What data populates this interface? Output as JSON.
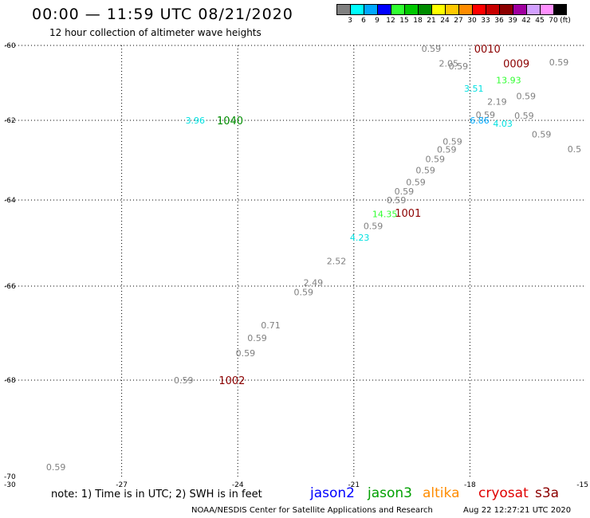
{
  "header": {
    "title": "00:00 — 11:59 UTC 08/21/2020",
    "subtitle": "12 hour collection of altimeter wave heights"
  },
  "color_scale": {
    "unit": "(ft)",
    "bins": [
      {
        "label": "3",
        "color": "#808080"
      },
      {
        "label": "6",
        "color": "#00ffff"
      },
      {
        "label": "9",
        "color": "#00a8ff"
      },
      {
        "label": "12",
        "color": "#0000ff"
      },
      {
        "label": "15",
        "color": "#30ff30"
      },
      {
        "label": "18",
        "color": "#00c800"
      },
      {
        "label": "21",
        "color": "#008c00"
      },
      {
        "label": "24",
        "color": "#ffff00"
      },
      {
        "label": "27",
        "color": "#ffc800"
      },
      {
        "label": "30",
        "color": "#ff8c00"
      },
      {
        "label": "33",
        "color": "#ff0000"
      },
      {
        "label": "36",
        "color": "#c80000"
      },
      {
        "label": "39",
        "color": "#8c0000"
      },
      {
        "label": "42",
        "color": "#a000a0"
      },
      {
        "label": "45",
        "color": "#d2a0ff"
      },
      {
        "label": "70",
        "color": "#ff90ff"
      },
      {
        "label": "",
        "color": "#000000"
      }
    ]
  },
  "map": {
    "lon_range": [
      -30,
      -15
    ],
    "lat_range": [
      -70,
      -60
    ],
    "y_ticks": [
      {
        "label": "-60",
        "lat": -60
      },
      {
        "label": "-62",
        "lat": -62
      },
      {
        "label": "-64",
        "lat": -64
      },
      {
        "label": "-66",
        "lat": -66
      },
      {
        "label": "-68",
        "lat": -68
      },
      {
        "label": "-70",
        "lat": -70
      }
    ],
    "x_ticks": [
      {
        "label": "-30",
        "lon": -30
      },
      {
        "label": "-27",
        "lon": -27
      },
      {
        "label": "-24",
        "lon": -24
      },
      {
        "label": "-21",
        "lon": -21
      },
      {
        "label": "-18",
        "lon": -18
      },
      {
        "label": "-15",
        "lon": -15
      }
    ],
    "obs_colors": {
      "gray": "#808080",
      "cyan": "#00e0e0",
      "blue": "#00a8ff",
      "green": "#30ff30"
    },
    "observations": [
      {
        "lon": -19.0,
        "lat": -60.08,
        "text": "0.59",
        "color": "gray"
      },
      {
        "lon": -18.55,
        "lat": -60.48,
        "text": "2.05",
        "color": "gray"
      },
      {
        "lon": -18.3,
        "lat": -60.55,
        "text": "0.59",
        "color": "gray"
      },
      {
        "lon": -15.7,
        "lat": -60.45,
        "text": "0.59",
        "color": "gray"
      },
      {
        "lon": -17.0,
        "lat": -60.93,
        "text": "13.93",
        "color": "green"
      },
      {
        "lon": -17.9,
        "lat": -61.15,
        "text": "3.51",
        "color": "cyan"
      },
      {
        "lon": -16.55,
        "lat": -61.35,
        "text": "0.59",
        "color": "gray"
      },
      {
        "lon": -17.3,
        "lat": -61.5,
        "text": "2.19",
        "color": "gray"
      },
      {
        "lon": -17.6,
        "lat": -61.85,
        "text": "0.59",
        "color": "gray"
      },
      {
        "lon": -16.6,
        "lat": -61.87,
        "text": "0.59",
        "color": "gray"
      },
      {
        "lon": -17.75,
        "lat": -62.0,
        "text": "6.86",
        "color": "blue"
      },
      {
        "lon": -17.15,
        "lat": -62.08,
        "text": "4.03",
        "color": "cyan"
      },
      {
        "lon": -16.15,
        "lat": -62.35,
        "text": "0.59",
        "color": "gray"
      },
      {
        "lon": -18.45,
        "lat": -62.53,
        "text": "0.59",
        "color": "gray"
      },
      {
        "lon": -18.6,
        "lat": -62.73,
        "text": "0.59",
        "color": "gray"
      },
      {
        "lon": -15.3,
        "lat": -62.72,
        "text": "0.5",
        "color": "gray"
      },
      {
        "lon": -18.9,
        "lat": -62.97,
        "text": "0.59",
        "color": "gray"
      },
      {
        "lon": -19.15,
        "lat": -63.25,
        "text": "0.59",
        "color": "gray"
      },
      {
        "lon": -19.4,
        "lat": -63.55,
        "text": "0.59",
        "color": "gray"
      },
      {
        "lon": -19.7,
        "lat": -63.78,
        "text": "0.59",
        "color": "gray"
      },
      {
        "lon": -19.9,
        "lat": -64.0,
        "text": "0.59",
        "color": "gray"
      },
      {
        "lon": -20.2,
        "lat": -64.32,
        "text": "14.35",
        "color": "green"
      },
      {
        "lon": -20.5,
        "lat": -64.6,
        "text": "0.59",
        "color": "gray"
      },
      {
        "lon": -20.85,
        "lat": -64.87,
        "text": "4.23",
        "color": "cyan"
      },
      {
        "lon": -21.45,
        "lat": -65.42,
        "text": "2.52",
        "color": "gray"
      },
      {
        "lon": -22.05,
        "lat": -65.92,
        "text": "2.49",
        "color": "gray"
      },
      {
        "lon": -22.3,
        "lat": -66.13,
        "text": "0.59",
        "color": "gray"
      },
      {
        "lon": -23.15,
        "lat": -66.83,
        "text": "0.71",
        "color": "gray"
      },
      {
        "lon": -23.5,
        "lat": -67.1,
        "text": "0.59",
        "color": "gray"
      },
      {
        "lon": -23.8,
        "lat": -67.42,
        "text": "0.59",
        "color": "gray"
      },
      {
        "lon": -25.4,
        "lat": -68.0,
        "text": "0.59",
        "color": "gray"
      },
      {
        "lon": -25.1,
        "lat": -62.0,
        "text": "3.96",
        "color": "cyan"
      },
      {
        "lon": -28.7,
        "lat": -69.8,
        "text": "0.59",
        "color": "gray"
      }
    ],
    "stations": [
      {
        "lon": -17.55,
        "lat": -60.08,
        "id": "0010",
        "color": "#8c0000"
      },
      {
        "lon": -16.8,
        "lat": -60.48,
        "id": "0009",
        "color": "#8c0000"
      },
      {
        "lon": -24.2,
        "lat": -62.0,
        "id": "1040",
        "color": "#008c00"
      },
      {
        "lon": -19.6,
        "lat": -64.3,
        "id": "1001",
        "color": "#8c0000"
      },
      {
        "lon": -24.15,
        "lat": -68.0,
        "id": "1002",
        "color": "#8c0000"
      }
    ]
  },
  "footer": {
    "note": "note:  1)  Time is in UTC;  2)  SWH is in feet",
    "satellites": [
      {
        "name": "jason2",
        "color": "#0000ff"
      },
      {
        "name": "jason3",
        "color": "#00a000"
      },
      {
        "name": "altika",
        "color": "#ff8c00"
      },
      {
        "name": "cryosat",
        "color": "#e00000"
      },
      {
        "name": "s3a",
        "color": "#8c0000"
      }
    ],
    "credit": "NOAA/NESDIS Center for Satellite Applications and Research",
    "timestamp": "Aug 22 12:27:21 UTC 2020"
  }
}
